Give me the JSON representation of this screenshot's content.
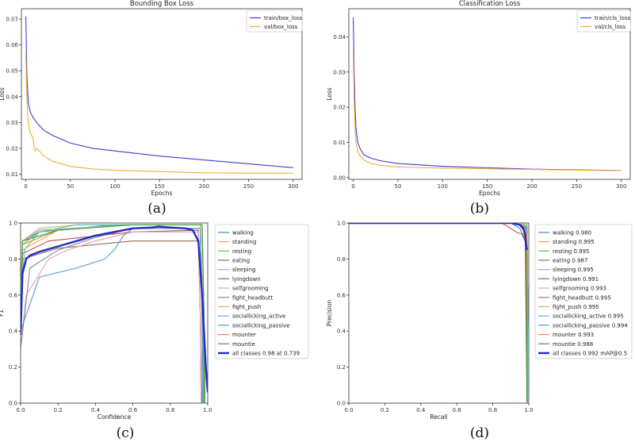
{
  "chart_data": [
    {
      "type": "line",
      "panel": "a",
      "caption": "(a)",
      "title": "Bounding Box Loss",
      "xlabel": "Epochs",
      "ylabel": "Loss",
      "xlim": [
        -5,
        310
      ],
      "ylim": [
        0.008,
        0.074
      ],
      "xticks": [
        0,
        50,
        100,
        150,
        200,
        250,
        300
      ],
      "yticks": [
        0.01,
        0.02,
        0.03,
        0.04,
        0.05,
        0.06,
        0.07
      ],
      "ytick_labels": [
        "0.01",
        "0.02",
        "0.03",
        "0.04",
        "0.05",
        "0.06",
        "0.07"
      ],
      "legend": "top-right",
      "series": [
        {
          "name": "train/box_loss",
          "color": "#3b3fd0",
          "x": [
            0,
            1,
            2,
            3,
            5,
            8,
            12,
            20,
            30,
            50,
            75,
            100,
            150,
            200,
            250,
            300
          ],
          "y": [
            0.071,
            0.05,
            0.042,
            0.037,
            0.034,
            0.032,
            0.03,
            0.027,
            0.025,
            0.022,
            0.02,
            0.019,
            0.017,
            0.0155,
            0.014,
            0.0125
          ]
        },
        {
          "name": "val/box_loss",
          "color": "#f0b030",
          "x": [
            0,
            1,
            2,
            3,
            5,
            8,
            10,
            12,
            15,
            20,
            30,
            50,
            75,
            100,
            150,
            200,
            250,
            300
          ],
          "y": [
            0.057,
            0.042,
            0.033,
            0.029,
            0.026,
            0.024,
            0.019,
            0.02,
            0.019,
            0.017,
            0.015,
            0.013,
            0.012,
            0.0115,
            0.011,
            0.0105,
            0.0104,
            0.0104
          ]
        }
      ]
    },
    {
      "type": "line",
      "panel": "b",
      "caption": "(b)",
      "title": "Classification Loss",
      "xlabel": "Epochs",
      "ylabel": "Loss",
      "xlim": [
        -5,
        310
      ],
      "ylim": [
        -0.0005,
        0.048
      ],
      "xticks": [
        0,
        50,
        100,
        150,
        200,
        250,
        300
      ],
      "yticks": [
        0.0,
        0.01,
        0.02,
        0.03,
        0.04
      ],
      "ytick_labels": [
        "0.00",
        "0.01",
        "0.02",
        "0.03",
        "0.04"
      ],
      "legend": "top-right",
      "series": [
        {
          "name": "train/cls_loss",
          "color": "#3b3fd0",
          "x": [
            0,
            1,
            2,
            3,
            5,
            8,
            12,
            20,
            30,
            50,
            100,
            150,
            200,
            250,
            300
          ],
          "y": [
            0.0455,
            0.03,
            0.02,
            0.014,
            0.01,
            0.008,
            0.0065,
            0.0055,
            0.0048,
            0.004,
            0.0032,
            0.0028,
            0.0024,
            0.0022,
            0.002
          ]
        },
        {
          "name": "val/cls_loss",
          "color": "#f0b030",
          "x": [
            0,
            1,
            2,
            3,
            5,
            8,
            12,
            20,
            30,
            50,
            100,
            150,
            200,
            250,
            300
          ],
          "y": [
            0.036,
            0.022,
            0.014,
            0.01,
            0.0075,
            0.006,
            0.005,
            0.004,
            0.0035,
            0.003,
            0.0027,
            0.0025,
            0.0023,
            0.0021,
            0.002
          ]
        }
      ]
    },
    {
      "type": "line",
      "panel": "c",
      "caption": "(c)",
      "title": "",
      "xlabel": "Confidence",
      "ylabel": "F1",
      "xlim": [
        0,
        1.0
      ],
      "ylim": [
        0,
        1.0
      ],
      "xticks": [
        0.0,
        0.2,
        0.4,
        0.6,
        0.8,
        1.0
      ],
      "yticks": [
        0.0,
        0.2,
        0.4,
        0.6,
        0.8,
        1.0
      ],
      "xtick_labels": [
        "0.0",
        "0.2",
        "0.4",
        "0.6",
        "0.8",
        "1.0"
      ],
      "ytick_labels": [
        "0.0",
        "0.2",
        "0.4",
        "0.6",
        "0.8",
        "1.0"
      ],
      "legend": "right-outside",
      "series": [
        {
          "name": "walking",
          "color": "#4a86c8",
          "x": [
            0,
            0.01,
            0.1,
            0.5,
            0.96,
            0.97,
            0.97
          ],
          "y": [
            0.6,
            0.9,
            0.95,
            0.99,
            0.99,
            0.5,
            0.0
          ]
        },
        {
          "name": "standing",
          "color": "#f5a742",
          "x": [
            0,
            0.01,
            0.2,
            0.5,
            0.96,
            0.975,
            0.98
          ],
          "y": [
            0.45,
            0.85,
            0.96,
            0.99,
            0.99,
            0.5,
            0.0
          ]
        },
        {
          "name": "resting",
          "color": "#6ab05a",
          "x": [
            0,
            0.01,
            0.1,
            0.5,
            0.96,
            0.975,
            0.98
          ],
          "y": [
            0.5,
            0.88,
            0.95,
            0.99,
            0.99,
            0.5,
            0.0
          ]
        },
        {
          "name": "eating",
          "color": "#c0504d",
          "x": [
            0,
            0.01,
            0.15,
            0.6,
            0.95,
            0.96,
            0.965
          ],
          "y": [
            0.5,
            0.83,
            0.9,
            0.95,
            0.96,
            0.5,
            0.0
          ]
        },
        {
          "name": "sleeping",
          "color": "#b4a0d6",
          "x": [
            0,
            0.01,
            0.1,
            0.6,
            0.97,
            0.98,
            0.985
          ],
          "y": [
            0.5,
            0.9,
            0.96,
            0.99,
            0.99,
            0.5,
            0.0
          ]
        },
        {
          "name": "lyingdown",
          "color": "#8c6e5a",
          "x": [
            0,
            0.01,
            0.2,
            0.4,
            0.6,
            0.95,
            0.96,
            0.965
          ],
          "y": [
            0.4,
            0.8,
            0.86,
            0.88,
            0.9,
            0.9,
            0.5,
            0.0
          ]
        },
        {
          "name": "selfgrooming",
          "color": "#e8a0c8",
          "x": [
            0,
            0.03,
            0.15,
            0.25,
            0.4,
            0.6,
            0.95,
            0.96,
            0.965
          ],
          "y": [
            0.3,
            0.6,
            0.8,
            0.85,
            0.9,
            0.95,
            0.95,
            0.5,
            0.0
          ]
        },
        {
          "name": "fight_headbutt",
          "color": "#8a8a8a",
          "x": [
            0,
            0.05,
            0.2,
            0.4,
            0.6,
            0.96,
            0.97,
            0.975
          ],
          "y": [
            0.3,
            0.75,
            0.85,
            0.92,
            0.97,
            0.97,
            0.5,
            0.0
          ]
        },
        {
          "name": "fight_push",
          "color": "#c8c44a",
          "x": [
            0,
            0.01,
            0.1,
            0.3,
            0.96,
            0.97,
            0.975
          ],
          "y": [
            0.55,
            0.9,
            0.97,
            0.99,
            0.99,
            0.5,
            0.0
          ]
        },
        {
          "name": "sociallicking_active",
          "color": "#4ac0c8",
          "x": [
            0,
            0.02,
            0.1,
            0.3,
            0.97,
            0.98,
            0.985
          ],
          "y": [
            0.5,
            0.85,
            0.95,
            0.99,
            0.99,
            0.5,
            0.0
          ]
        },
        {
          "name": "sociallicking_passive",
          "color": "#5a9ad0",
          "x": [
            0,
            0.1,
            0.3,
            0.45,
            0.5,
            0.55,
            0.6,
            0.96,
            0.97,
            0.975
          ],
          "y": [
            0.4,
            0.7,
            0.75,
            0.8,
            0.85,
            0.93,
            0.97,
            0.97,
            0.5,
            0.0
          ]
        },
        {
          "name": "mounter",
          "color": "#f08a30",
          "x": [
            0,
            0.01,
            0.2,
            0.6,
            0.97,
            0.98,
            0.985
          ],
          "y": [
            0.5,
            0.88,
            0.96,
            0.99,
            0.99,
            0.5,
            0.0
          ]
        },
        {
          "name": "mountie",
          "color": "#3aa04a",
          "x": [
            0,
            0.01,
            0.2,
            0.6,
            0.97,
            0.98,
            0.985
          ],
          "y": [
            0.5,
            0.9,
            0.96,
            0.99,
            0.99,
            0.5,
            0.0
          ]
        },
        {
          "name": "all classes 0.98 at 0.739",
          "color": "#1f2fbf",
          "bold": true,
          "x": [
            0,
            0.01,
            0.03,
            0.05,
            0.1,
            0.2,
            0.3,
            0.4,
            0.5,
            0.6,
            0.7,
            0.739,
            0.8,
            0.88,
            0.92,
            0.95,
            0.97,
            0.99,
            1.0
          ],
          "y": [
            0.38,
            0.72,
            0.8,
            0.82,
            0.84,
            0.87,
            0.9,
            0.93,
            0.95,
            0.97,
            0.975,
            0.98,
            0.975,
            0.97,
            0.96,
            0.9,
            0.6,
            0.2,
            0.06
          ]
        }
      ]
    },
    {
      "type": "line",
      "panel": "d",
      "caption": "(d)",
      "title": "",
      "xlabel": "Recall",
      "ylabel": "Precision",
      "xlim": [
        0,
        1.0
      ],
      "ylim": [
        0,
        1.0
      ],
      "xticks": [
        0.0,
        0.2,
        0.4,
        0.6,
        0.8,
        1.0
      ],
      "yticks": [
        0.0,
        0.2,
        0.4,
        0.6,
        0.8,
        1.0
      ],
      "xtick_labels": [
        "0.0",
        "0.2",
        "0.4",
        "0.6",
        "0.8",
        "1.0"
      ],
      "ytick_labels": [
        "0.0",
        "0.2",
        "0.4",
        "0.6",
        "0.8",
        "1.0"
      ],
      "legend": "right-outside",
      "series": [
        {
          "name": "walking 0.980",
          "color": "#4a86c8",
          "x": [
            0,
            0.9,
            0.95,
            0.97,
            0.98,
            0.99,
            0.995
          ],
          "y": [
            1.0,
            1.0,
            0.97,
            0.93,
            0.9,
            0.5,
            0.0
          ]
        },
        {
          "name": "standing 0.995",
          "color": "#f5a742",
          "x": [
            0,
            0.98,
            0.99,
            0.995,
            1.0
          ],
          "y": [
            1.0,
            1.0,
            0.99,
            0.5,
            0.0
          ]
        },
        {
          "name": "resting 0.995",
          "color": "#6ab05a",
          "x": [
            0,
            0.98,
            0.99,
            0.995,
            1.0
          ],
          "y": [
            1.0,
            1.0,
            0.99,
            0.5,
            0.0
          ]
        },
        {
          "name": "eating 0.987",
          "color": "#c0504d",
          "x": [
            0,
            0.85,
            0.9,
            0.93,
            0.96,
            0.98,
            0.99
          ],
          "y": [
            1.0,
            1.0,
            0.97,
            0.95,
            0.94,
            0.9,
            0.0
          ]
        },
        {
          "name": "sleeping 0.995",
          "color": "#b4a0d6",
          "x": [
            0,
            0.98,
            0.99,
            0.995,
            1.0
          ],
          "y": [
            1.0,
            1.0,
            0.99,
            0.5,
            0.0
          ]
        },
        {
          "name": "lyingdown 0.991",
          "color": "#8c6e5a",
          "x": [
            0,
            0.95,
            0.98,
            0.99,
            0.995
          ],
          "y": [
            1.0,
            1.0,
            0.97,
            0.9,
            0.0
          ]
        },
        {
          "name": "selfgrooming 0.993",
          "color": "#e8a0c8",
          "x": [
            0,
            0.96,
            0.98,
            0.99,
            0.995
          ],
          "y": [
            1.0,
            1.0,
            0.98,
            0.93,
            0.0
          ]
        },
        {
          "name": "fight_headbutt 0.995",
          "color": "#8a8a8a",
          "x": [
            0,
            0.98,
            0.99,
            0.995,
            1.0
          ],
          "y": [
            1.0,
            1.0,
            0.99,
            0.5,
            0.0
          ]
        },
        {
          "name": "fight_push 0.995",
          "color": "#c8c44a",
          "x": [
            0,
            0.98,
            0.99,
            0.995,
            1.0
          ],
          "y": [
            1.0,
            1.0,
            0.99,
            0.5,
            0.0
          ]
        },
        {
          "name": "sociallicking_active 0.995",
          "color": "#4ac0c8",
          "x": [
            0,
            0.98,
            0.99,
            0.995,
            1.0
          ],
          "y": [
            1.0,
            1.0,
            0.99,
            0.5,
            0.0
          ]
        },
        {
          "name": "sociallicking_passive 0.994",
          "color": "#5a9ad0",
          "x": [
            0,
            0.97,
            0.985,
            0.99,
            0.995
          ],
          "y": [
            1.0,
            1.0,
            0.98,
            0.95,
            0.0
          ]
        },
        {
          "name": "mounter 0.993",
          "color": "#f08a30",
          "x": [
            0,
            0.96,
            0.98,
            0.99,
            0.995
          ],
          "y": [
            1.0,
            1.0,
            0.98,
            0.93,
            0.0
          ]
        },
        {
          "name": "mountie 0.988",
          "color": "#3aa04a",
          "x": [
            0,
            0.94,
            0.97,
            0.985,
            0.99
          ],
          "y": [
            1.0,
            1.0,
            0.96,
            0.9,
            0.0
          ]
        },
        {
          "name": "all classes 0.992 mAP@0.5",
          "color": "#1f2fbf",
          "bold": true,
          "x": [
            0,
            0.9,
            0.95,
            0.97,
            0.98,
            0.985,
            0.99
          ],
          "y": [
            1.0,
            1.0,
            0.99,
            0.97,
            0.93,
            0.88,
            0.85
          ]
        }
      ]
    }
  ]
}
